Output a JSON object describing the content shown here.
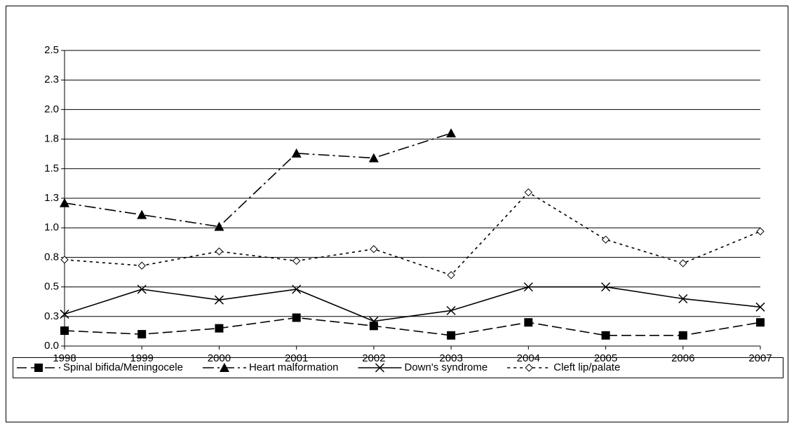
{
  "chart_data": {
    "type": "line",
    "x": [
      1998,
      1999,
      2000,
      2001,
      2002,
      2003,
      2004,
      2005,
      2006,
      2007
    ],
    "xlim": [
      1998,
      2007
    ],
    "xticks": [
      1998,
      1999,
      2000,
      2001,
      2002,
      2003,
      2004,
      2005,
      2006,
      2007
    ],
    "ylim": [
      0,
      2.5
    ],
    "yticks": [
      {
        "value": 0,
        "label": "0.0"
      },
      {
        "value": 0.25,
        "label": "0.3"
      },
      0.5,
      {
        "value": 0.75,
        "label": "0.8"
      },
      {
        "value": 1,
        "label": "1.0"
      },
      {
        "value": 1.25,
        "label": "1.3"
      },
      1.5,
      {
        "value": 1.75,
        "label": "1.8"
      },
      {
        "value": 2,
        "label": "2.0"
      },
      {
        "value": 2.25,
        "label": "2.3"
      },
      2.5
    ],
    "grid": true,
    "legend": "bottom",
    "series": [
      {
        "name": "Spinal bifida/Meningocele",
        "color": "#000000",
        "dash": "14,6",
        "marker": "square",
        "values": [
          0.13,
          0.1,
          0.15,
          0.24,
          0.17,
          0.09,
          0.2,
          0.09,
          0.09,
          0.2
        ]
      },
      {
        "name": "Heart malformation",
        "color": "#000000",
        "dash": "16,5,3,5",
        "marker": "triangle",
        "values": [
          1.21,
          1.11,
          1.01,
          1.63,
          1.59,
          1.8,
          null,
          null,
          null,
          null
        ]
      },
      {
        "name": "Down's syndrome",
        "color": "#000000",
        "dash": "none",
        "marker": "x",
        "values": [
          0.27,
          0.48,
          0.39,
          0.48,
          0.21,
          0.3,
          0.5,
          0.5,
          0.4,
          0.33
        ]
      },
      {
        "name": "Cleft lip/palate",
        "color": "#000000",
        "dash": "4,5",
        "marker": "diamond",
        "values": [
          0.73,
          0.68,
          0.8,
          0.72,
          0.82,
          0.6,
          1.3,
          0.9,
          0.7,
          0.97
        ]
      }
    ]
  }
}
